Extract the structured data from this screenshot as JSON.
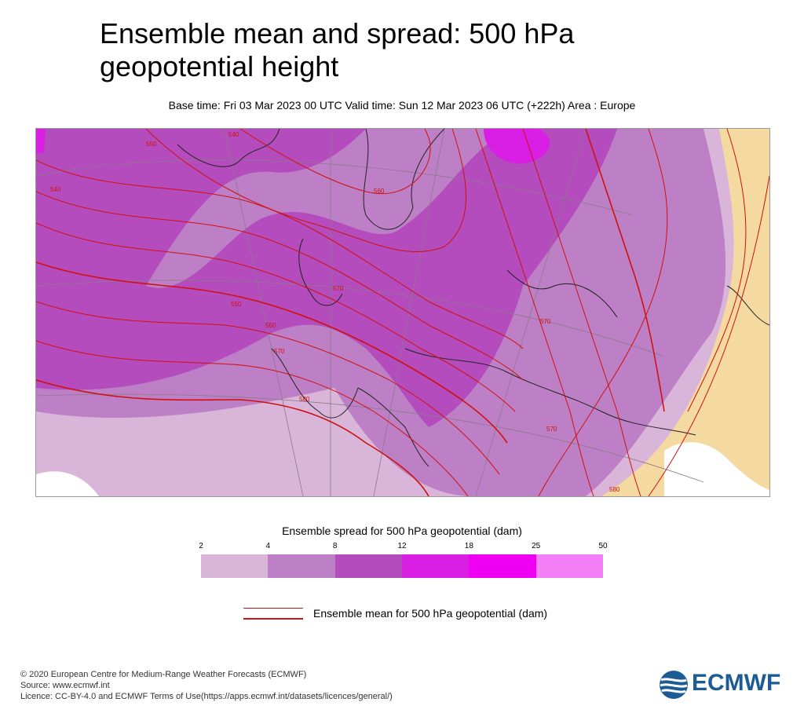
{
  "title_line1": "Ensemble mean and spread: 500 hPa",
  "title_line2": "geopotential height",
  "subtitle": "Base time: Fri 03 Mar 2023 00 UTC Valid time: Sun 12 Mar 2023 06 UTC (+222h) Area : Europe",
  "spread_legend": {
    "title": "Ensemble spread for 500 hPa geopotential (dam)",
    "ticks": [
      "2",
      "4",
      "8",
      "12",
      "18",
      "25",
      "50"
    ],
    "colors": [
      "#d9b6d9",
      "#bd80c6",
      "#b44cbe",
      "#d81fe3",
      "#ef00f3",
      "#f47ef6"
    ]
  },
  "mean_legend": {
    "label": "Ensemble mean for 500 hPa geopotential (dam)",
    "color": "#d01010"
  },
  "contour_labels": [
    "540",
    "550",
    "560",
    "570",
    "580",
    "570",
    "560",
    "550",
    "540",
    "570",
    "570",
    "580"
  ],
  "footer": {
    "line1": "© 2020 European Centre for Medium-Range Weather Forecasts (ECMWF)",
    "line2": "Source: www.ecmwf.int",
    "line3": "Licence: CC-BY-4.0 and ECMWF Terms of Use(https://apps.ecmwf.int/datasets/licences/general/)"
  },
  "logo_text": "ECMWF"
}
